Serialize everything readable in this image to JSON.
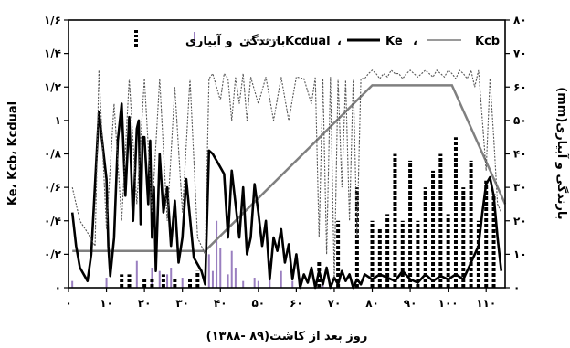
{
  "chart_data": {
    "type": "line",
    "xlabel": "روز بعد از کاشت(۸۹ -۱۳۸۸)",
    "ylabel_left": "Ke، Kcb، Kcdual",
    "ylabel_right": "بارندگی و آبیاری(mm)",
    "xlim": [
      0,
      115
    ],
    "ylim_left": [
      0,
      1.6
    ],
    "ylim_right": [
      0,
      80
    ],
    "xticks": [
      0,
      10,
      20,
      30,
      40,
      50,
      60,
      70,
      80,
      90,
      100,
      110
    ],
    "xtick_labels": [
      "۰",
      "۱۰",
      "۲۰",
      "۳۰",
      "۴۰",
      "۵۰",
      "۶۰",
      "۷۰",
      "۸۰",
      "۹۰",
      "۱۰۰",
      "۱۱۰"
    ],
    "yticks_left": [
      0,
      0.2,
      0.4,
      0.6,
      0.8,
      1.0,
      1.2,
      1.4,
      1.6
    ],
    "ytick_labels_left": [
      "۰",
      "۰/۲",
      "۰/۴",
      "۰/۶",
      "۰/۸",
      "۱",
      "۱/۲",
      "۱/۴",
      "۱/۶"
    ],
    "yticks_right": [
      0,
      10,
      20,
      30,
      40,
      50,
      60,
      70,
      80
    ],
    "ytick_labels_right": [
      "۰",
      "۱۰",
      "۲۰",
      "۳۰",
      "۴۰",
      "۵۰",
      "۶۰",
      "۷۰",
      "۸۰"
    ],
    "grid": false,
    "legend_position": "top-inside",
    "legend": [
      {
        "key": "kcb",
        "label": "Kcb",
        "style": "solid-gray"
      },
      {
        "key": "ke",
        "label": "Ke",
        "style": "solid-black"
      },
      {
        "key": "kcdual",
        "label": "Kcdual",
        "style": "dotted"
      },
      {
        "key": "rain",
        "label": "بارندگی",
        "style": "purple-bar"
      },
      {
        "key": "irr",
        "label": "و آبیاری",
        "style": "dashed-black-bar"
      }
    ],
    "colors": {
      "kcb": "#808080",
      "ke": "#000000",
      "kcdual": "#555555",
      "rain": "#9a7fc0",
      "irr": "#000000"
    },
    "series": [
      {
        "name": "Kcb",
        "key": "kcb",
        "x": [
          1,
          36,
          80,
          101,
          115
        ],
        "y": [
          0.22,
          0.22,
          1.21,
          1.21,
          0.5
        ]
      },
      {
        "name": "Ke",
        "key": "ke",
        "x": [
          1,
          2,
          3,
          5,
          6,
          8,
          10,
          10.5,
          11,
          12,
          13,
          14,
          15,
          16,
          17,
          18,
          18.5,
          19,
          19.5,
          20,
          21,
          21.5,
          22,
          22.5,
          23,
          24,
          25,
          26,
          27,
          28,
          29,
          30,
          31,
          33,
          35,
          36,
          37,
          38,
          39,
          40,
          41,
          42,
          43,
          44,
          45,
          46,
          47,
          48,
          49,
          50,
          51,
          52,
          53,
          54,
          55,
          56,
          57,
          58,
          59,
          60,
          61,
          62,
          63,
          64,
          65,
          66,
          67,
          68,
          69,
          70,
          71,
          72,
          73,
          74,
          75,
          76,
          77,
          78,
          80,
          82,
          84,
          86,
          88,
          90,
          92,
          94,
          96,
          98,
          100,
          102,
          104,
          106,
          108,
          109,
          110,
          111,
          112,
          113,
          114
        ],
        "y": [
          0.45,
          0.25,
          0.12,
          0.04,
          0.2,
          1.05,
          0.65,
          0.25,
          0.07,
          0.3,
          0.88,
          1.1,
          0.55,
          1.02,
          0.4,
          0.95,
          1.0,
          0.38,
          0.9,
          0.9,
          0.5,
          0.88,
          0.3,
          0.6,
          0.1,
          0.8,
          0.45,
          0.6,
          0.25,
          0.52,
          0.15,
          0.3,
          0.65,
          0.18,
          0.1,
          0.02,
          0.82,
          0.8,
          0.76,
          0.72,
          0.68,
          0.3,
          0.7,
          0.5,
          0.3,
          0.6,
          0.2,
          0.3,
          0.62,
          0.45,
          0.25,
          0.4,
          0.05,
          0.3,
          0.22,
          0.35,
          0.15,
          0.26,
          0.05,
          0.2,
          0.0,
          0.08,
          0.03,
          0.12,
          0.0,
          0.1,
          0.02,
          0.12,
          0.0,
          0.06,
          0.02,
          0.1,
          0.04,
          0.08,
          0.0,
          0.05,
          0.02,
          0.08,
          0.05,
          0.08,
          0.06,
          0.04,
          0.1,
          0.05,
          0.03,
          0.08,
          0.04,
          0.07,
          0.05,
          0.08,
          0.05,
          0.15,
          0.25,
          0.45,
          0.62,
          0.66,
          0.55,
          0.3,
          0.1
        ]
      },
      {
        "name": "Kcdual",
        "key": "kcdual",
        "x": [
          1,
          3,
          5,
          7,
          8,
          10,
          12,
          14,
          16,
          18,
          20,
          22,
          24,
          26,
          28,
          30,
          32,
          34,
          36,
          37,
          38,
          39,
          40,
          41,
          42,
          43,
          44,
          45,
          46,
          47,
          48,
          50,
          52,
          54,
          56,
          58,
          60,
          62,
          64,
          65,
          66,
          67,
          68,
          69,
          70,
          71,
          72,
          73,
          74,
          75,
          76,
          77,
          78,
          79,
          80,
          81,
          82,
          83,
          84,
          85,
          86,
          87,
          88,
          89,
          90,
          91,
          92,
          93,
          94,
          95,
          96,
          97,
          98,
          99,
          100,
          101,
          102,
          103,
          104,
          105,
          106,
          107,
          108,
          109,
          110,
          111,
          112,
          113,
          114
        ],
        "y": [
          0.6,
          0.4,
          0.33,
          0.25,
          1.3,
          0.35,
          1.1,
          0.4,
          1.25,
          0.5,
          1.25,
          0.45,
          1.25,
          0.4,
          1.2,
          0.45,
          1.25,
          0.3,
          0.2,
          1.25,
          1.28,
          1.2,
          1.12,
          1.28,
          1.25,
          1.0,
          1.26,
          1.1,
          1.28,
          1.0,
          1.26,
          1.1,
          1.26,
          1.0,
          1.26,
          1.0,
          1.26,
          1.25,
          1.1,
          1.26,
          0.3,
          1.25,
          0.2,
          1.26,
          0.05,
          1.25,
          0.6,
          1.24,
          0.4,
          1.25,
          0.3,
          1.25,
          1.25,
          1.28,
          1.3,
          1.28,
          1.25,
          1.28,
          1.26,
          1.3,
          1.28,
          1.28,
          1.25,
          1.28,
          1.3,
          1.28,
          1.26,
          1.28,
          1.3,
          1.28,
          1.26,
          1.3,
          1.28,
          1.26,
          1.3,
          1.28,
          1.25,
          1.3,
          1.28,
          1.25,
          1.3,
          1.2,
          1.3,
          1.0,
          0.7,
          1.25,
          0.9,
          0.5,
          0.45
        ]
      }
    ],
    "bars": {
      "rain": {
        "name": "بارندگی",
        "x": [
          1,
          10,
          18,
          22,
          24,
          26,
          27,
          30,
          37,
          38,
          39,
          40,
          42,
          43,
          44,
          46,
          49,
          50,
          53,
          56,
          59,
          61,
          67
        ],
        "values": [
          2,
          3,
          8,
          6,
          5,
          4,
          6,
          3,
          10,
          5,
          20,
          12,
          4,
          11,
          6,
          2,
          3,
          2,
          8,
          5,
          2,
          3,
          2
        ]
      },
      "irrigation": {
        "name": "و آبیاری",
        "x": [
          14,
          16,
          20,
          22,
          25,
          28,
          32,
          34,
          66,
          71,
          76,
          80,
          82,
          84,
          86,
          88,
          90,
          92,
          94,
          96,
          98,
          100,
          102,
          104,
          106,
          108,
          110,
          112
        ],
        "values": [
          4,
          4,
          3,
          3,
          4,
          3,
          3,
          5,
          8,
          20,
          30,
          20,
          18,
          22,
          40,
          20,
          38,
          20,
          30,
          35,
          40,
          22,
          45,
          30,
          38,
          20,
          32,
          28
        ]
      }
    }
  }
}
